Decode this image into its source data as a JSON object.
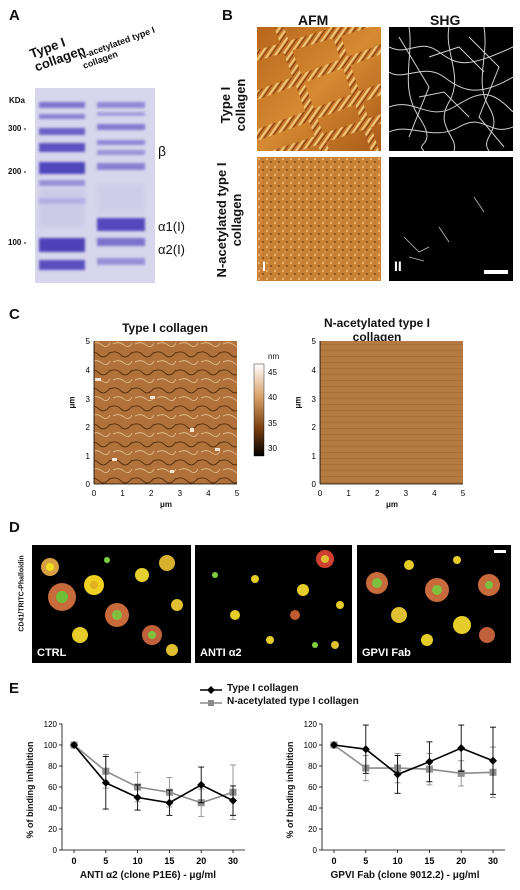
{
  "panelA": {
    "letter": "A",
    "lane1": "Type I collagen",
    "lane2": "N-acetylated type I collagen",
    "kda_label": "KDa",
    "markers": [
      "300 -",
      "200 -",
      "100 -"
    ],
    "beta": "β",
    "alpha1": "α1(I)",
    "alpha2": "α2(I)"
  },
  "panelB": {
    "letter": "B",
    "col1": "AFM",
    "col2": "SHG",
    "row1": "Type I collagen",
    "row2": "N-acetylated type I collagen",
    "mark1": "I",
    "mark2": "II"
  },
  "panelC": {
    "letter": "C",
    "title1": "Type I collagen",
    "title2": "N-acetylated type I collagen",
    "ylabel": "μm",
    "xlabel": "μm",
    "ticks": [
      "0",
      "1",
      "2",
      "3",
      "4",
      "5"
    ],
    "colorbar_unit": "nm",
    "colorbar_ticks": [
      "45",
      "40",
      "35",
      "30"
    ]
  },
  "panelD": {
    "letter": "D",
    "side_label": "CD41/TRITC-Phalloidin",
    "img1": "CTRL",
    "img2": "ANTI α2",
    "img3": "GPVI Fab"
  },
  "panelE": {
    "letter": "E",
    "legend1": "Type I collagen",
    "legend2": "N-acetylated type I collagen",
    "ylabel": "% of binding inhibition",
    "xlabel1": "ANTI α2 (clone P1E6) - μg/ml",
    "xlabel2": "GPVI Fab (clone 9012.2) - μg/ml"
  },
  "chart_data": [
    {
      "type": "line",
      "x": [
        "0",
        "5",
        "10",
        "15",
        "20",
        "30"
      ],
      "ylim": [
        0,
        120
      ],
      "yticks": [
        "0",
        "20",
        "40",
        "60",
        "80",
        "100",
        "120"
      ],
      "series": [
        {
          "name": "Type I collagen",
          "color": "#000000",
          "values": [
            100,
            64,
            50,
            45,
            62,
            47
          ],
          "err": [
            0,
            25,
            12,
            12,
            17,
            14
          ]
        },
        {
          "name": "N-acetylated type I collagen",
          "color": "#8c8c8c",
          "values": [
            100,
            75,
            60,
            55,
            45,
            55
          ],
          "err": [
            0,
            16,
            14,
            14,
            13,
            26
          ]
        }
      ]
    },
    {
      "type": "line",
      "x": [
        "0",
        "5",
        "10",
        "15",
        "20",
        "30"
      ],
      "ylim": [
        0,
        120
      ],
      "yticks": [
        "0",
        "20",
        "40",
        "60",
        "80",
        "100",
        "120"
      ],
      "series": [
        {
          "name": "Type I collagen",
          "color": "#000000",
          "values": [
            100,
            96,
            72,
            84,
            97,
            85
          ],
          "err": [
            0,
            23,
            18,
            19,
            22,
            32
          ]
        },
        {
          "name": "N-acetylated type I collagen",
          "color": "#8c8c8c",
          "values": [
            100,
            78,
            78,
            77,
            73,
            74
          ],
          "err": [
            0,
            12,
            14,
            15,
            12,
            24
          ]
        }
      ]
    }
  ]
}
